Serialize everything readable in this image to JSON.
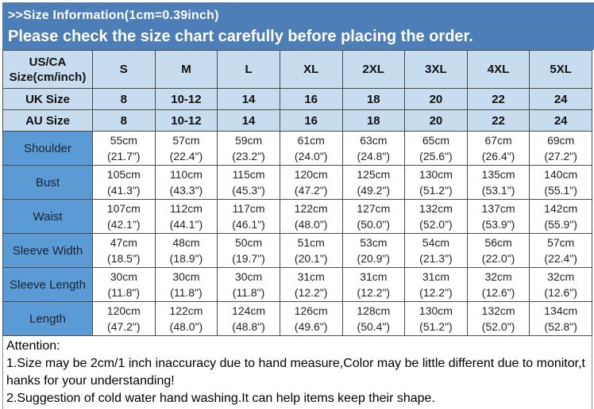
{
  "banner": {
    "line1": ">>Size Information(1cm=0.39inch)",
    "line2": "Please check the size chart carefully before placing the order."
  },
  "colors": {
    "banner_bg": "#4d7eb8",
    "banner_text": "#ffffff",
    "header_bg": "#c8dcef",
    "label_bg": "#5b9bd5",
    "border": "#4c4c4c"
  },
  "table": {
    "header": [
      "US/CA\nSize(cm/inch)",
      "S",
      "M",
      "L",
      "XL",
      "2XL",
      "3XL",
      "4XL",
      "5XL"
    ],
    "size_rows": [
      {
        "label": "UK Size",
        "values": [
          "8",
          "10-12",
          "14",
          "16",
          "18",
          "20",
          "22",
          "24"
        ]
      },
      {
        "label": "AU Size",
        "values": [
          "8",
          "10-12",
          "14",
          "16",
          "18",
          "20",
          "22",
          "24"
        ]
      }
    ],
    "measure_rows": [
      {
        "label": "Shoulder",
        "values": [
          "55cm\n(21.7\")",
          "57cm\n(22.4\")",
          "59cm\n(23.2\")",
          "61cm\n(24.0\")",
          "63cm\n(24.8\")",
          "65cm\n(25.6\")",
          "67cm\n(26.4\")",
          "69cm\n(27.2\")"
        ]
      },
      {
        "label": "Bust",
        "values": [
          "105cm\n(41.3\")",
          "110cm\n(43.3\")",
          "115cm\n(45.3\")",
          "120cm\n(47.2\")",
          "125cm\n(49.2\")",
          "130cm\n(51.2\")",
          "135cm\n(53.1\")",
          "140cm\n(55.1\")"
        ]
      },
      {
        "label": "Waist",
        "values": [
          "107cm\n(42.1\")",
          "112cm\n(44.1\")",
          "117cm\n(46.1\")",
          "122cm\n(48.0\")",
          "127cm\n(50.0\")",
          "132cm\n(52.0\")",
          "137cm\n(53.9\")",
          "142cm\n(55.9\")"
        ]
      },
      {
        "label": "Sleeve Width",
        "values": [
          "47cm\n(18.5\")",
          "48cm\n(18.9\")",
          "50cm\n(19.7\")",
          "51cm\n(20.1\")",
          "53cm\n(20.9\")",
          "54cm\n(21.3\")",
          "56cm\n(22.0\")",
          "57cm\n(22.4\")"
        ]
      },
      {
        "label": "Sleeve Length",
        "values": [
          "30cm\n(11.8\")",
          "30cm\n(11.8\")",
          "30cm\n(11.8\")",
          "31cm\n(12.2\")",
          "31cm\n(12.2\")",
          "31cm\n(12.2\")",
          "32cm\n(12.6\")",
          "32cm\n(12.6\")"
        ]
      },
      {
        "label": "Length",
        "values": [
          "120cm\n(47.2\")",
          "122cm\n(48.0\")",
          "124cm\n(48.8\")",
          "126cm\n(49.6\")",
          "128cm\n(50.4\")",
          "130cm\n(51.2\")",
          "132cm\n(52.0\")",
          "134cm\n(52.8\")"
        ]
      }
    ]
  },
  "attention": {
    "lines": [
      "Attention:",
      "1.Size may be 2cm/1 inch inaccuracy due to hand measure,Color may be little different due to monitor,t",
      "hanks for your understanding!",
      "2.Suggestion of cold water hand washing.It can help items keep their shape."
    ]
  }
}
